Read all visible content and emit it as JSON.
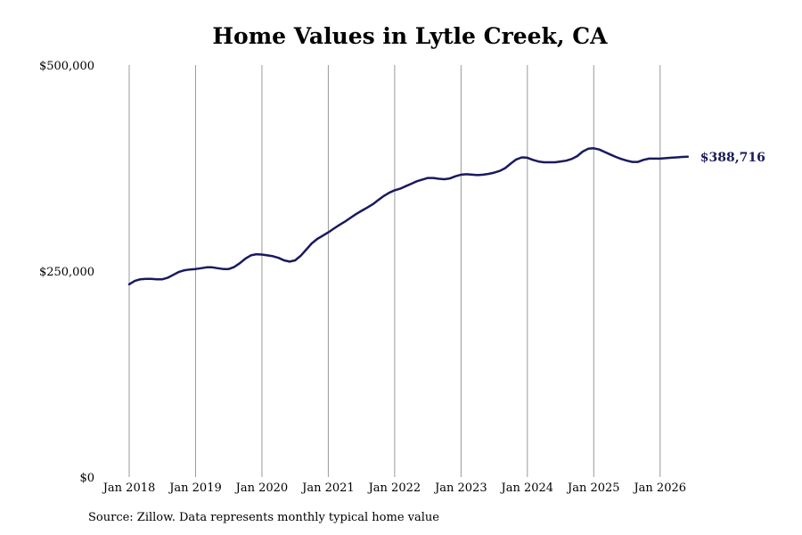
{
  "chart_data": {
    "type": "line",
    "title": "Home Values in Lytle Creek, CA",
    "source": "Source: Zillow. Data represents monthly typical home value",
    "xlabel": "",
    "ylabel": "",
    "ylim": [
      0,
      500000
    ],
    "y_ticks": [
      {
        "value": 0,
        "label": "$0"
      },
      {
        "value": 250000,
        "label": "$250,000"
      },
      {
        "value": 500000,
        "label": "$500,000"
      }
    ],
    "x_ticks": [
      {
        "date": "2018-01",
        "label": "Jan 2018"
      },
      {
        "date": "2019-01",
        "label": "Jan 2019"
      },
      {
        "date": "2020-01",
        "label": "Jan 2020"
      },
      {
        "date": "2021-01",
        "label": "Jan 2021"
      },
      {
        "date": "2022-01",
        "label": "Jan 2022"
      },
      {
        "date": "2023-01",
        "label": "Jan 2023"
      },
      {
        "date": "2024-01",
        "label": "Jan 2024"
      },
      {
        "date": "2025-01",
        "label": "Jan 2025"
      },
      {
        "date": "2026-01",
        "label": "Jan 2026"
      }
    ],
    "xlim": [
      "2018-01",
      "2026-07"
    ],
    "grid": "vertical",
    "line_color": "#1a1a5e",
    "end_label": "$388,716",
    "series": [
      {
        "points": [
          [
            "2018-01",
            234000
          ],
          [
            "2018-02",
            238000
          ],
          [
            "2018-03",
            240000
          ],
          [
            "2018-04",
            240500
          ],
          [
            "2018-05",
            240500
          ],
          [
            "2018-06",
            240000
          ],
          [
            "2018-07",
            240000
          ],
          [
            "2018-08",
            242000
          ],
          [
            "2018-09",
            245500
          ],
          [
            "2018-10",
            249000
          ],
          [
            "2018-11",
            251000
          ],
          [
            "2018-12",
            252000
          ],
          [
            "2019-01",
            252500
          ],
          [
            "2019-02",
            253500
          ],
          [
            "2019-03",
            254500
          ],
          [
            "2019-04",
            254500
          ],
          [
            "2019-05",
            253500
          ],
          [
            "2019-06",
            252500
          ],
          [
            "2019-07",
            252500
          ],
          [
            "2019-08",
            255000
          ],
          [
            "2019-09",
            259500
          ],
          [
            "2019-10",
            265000
          ],
          [
            "2019-11",
            269000
          ],
          [
            "2019-12",
            270500
          ],
          [
            "2020-01",
            270000
          ],
          [
            "2020-02",
            269000
          ],
          [
            "2020-03",
            268000
          ],
          [
            "2020-04",
            266000
          ],
          [
            "2020-05",
            263000
          ],
          [
            "2020-06",
            261500
          ],
          [
            "2020-07",
            263000
          ],
          [
            "2020-08",
            268500
          ],
          [
            "2020-09",
            276000
          ],
          [
            "2020-10",
            283500
          ],
          [
            "2020-11",
            289000
          ],
          [
            "2020-12",
            293000
          ],
          [
            "2021-01",
            297000
          ],
          [
            "2021-02",
            301500
          ],
          [
            "2021-03",
            306000
          ],
          [
            "2021-04",
            310000
          ],
          [
            "2021-05",
            314500
          ],
          [
            "2021-06",
            319000
          ],
          [
            "2021-07",
            323000
          ],
          [
            "2021-08",
            327000
          ],
          [
            "2021-09",
            331000
          ],
          [
            "2021-10",
            336000
          ],
          [
            "2021-11",
            341000
          ],
          [
            "2021-12",
            345000
          ],
          [
            "2022-01",
            348000
          ],
          [
            "2022-02",
            350000
          ],
          [
            "2022-03",
            353000
          ],
          [
            "2022-04",
            356000
          ],
          [
            "2022-05",
            359000
          ],
          [
            "2022-06",
            361000
          ],
          [
            "2022-07",
            363000
          ],
          [
            "2022-08",
            363000
          ],
          [
            "2022-09",
            362000
          ],
          [
            "2022-10",
            361500
          ],
          [
            "2022-11",
            362500
          ],
          [
            "2022-12",
            365000
          ],
          [
            "2023-01",
            367000
          ],
          [
            "2023-02",
            367500
          ],
          [
            "2023-03",
            367000
          ],
          [
            "2023-04",
            366500
          ],
          [
            "2023-05",
            367000
          ],
          [
            "2023-06",
            368000
          ],
          [
            "2023-07",
            369500
          ],
          [
            "2023-08",
            371500
          ],
          [
            "2023-09",
            375000
          ],
          [
            "2023-10",
            380500
          ],
          [
            "2023-11",
            385500
          ],
          [
            "2023-12",
            388000
          ],
          [
            "2024-01",
            387500
          ],
          [
            "2024-02",
            385000
          ],
          [
            "2024-03",
            383000
          ],
          [
            "2024-04",
            382000
          ],
          [
            "2024-05",
            382000
          ],
          [
            "2024-06",
            382000
          ],
          [
            "2024-07",
            383000
          ],
          [
            "2024-08",
            384000
          ],
          [
            "2024-09",
            386000
          ],
          [
            "2024-10",
            389500
          ],
          [
            "2024-11",
            395000
          ],
          [
            "2024-12",
            398500
          ],
          [
            "2025-01",
            399000
          ],
          [
            "2025-02",
            397500
          ],
          [
            "2025-03",
            394500
          ],
          [
            "2025-04",
            391500
          ],
          [
            "2025-05",
            388500
          ],
          [
            "2025-06",
            386000
          ],
          [
            "2025-07",
            384000
          ],
          [
            "2025-08",
            382500
          ],
          [
            "2025-09",
            382500
          ],
          [
            "2025-10",
            385000
          ],
          [
            "2025-11",
            386500
          ],
          [
            "2025-12",
            386500
          ],
          [
            "2026-01",
            386500
          ],
          [
            "2026-02",
            387000
          ],
          [
            "2026-03",
            387500
          ],
          [
            "2026-04",
            388000
          ],
          [
            "2026-05",
            388500
          ],
          [
            "2026-06",
            388716
          ]
        ]
      }
    ]
  }
}
